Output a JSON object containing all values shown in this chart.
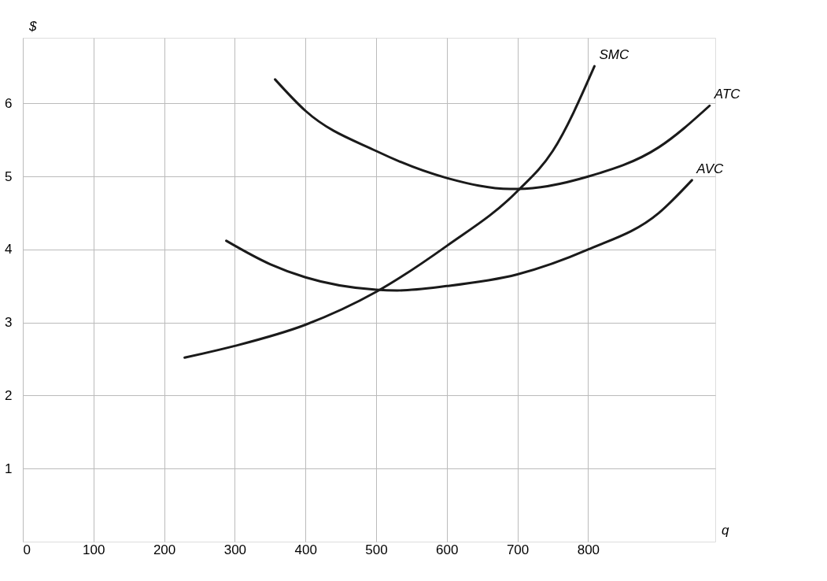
{
  "chart_data": {
    "type": "line",
    "xlabel": "q",
    "ylabel": "$",
    "xlim": [
      0,
      980
    ],
    "ylim": [
      0,
      6.9
    ],
    "xticks": [
      0,
      100,
      200,
      300,
      400,
      500,
      600,
      700,
      800
    ],
    "yticks": [
      1,
      2,
      3,
      4,
      5,
      6
    ],
    "grid": true,
    "marker": "none",
    "line_style": "solid",
    "series": [
      {
        "name": "SMC",
        "color": "#1a1a1a",
        "x": [
          229,
          300,
          400,
          500,
          600,
          700,
          750,
          809
        ],
        "values": [
          2.52,
          2.68,
          2.97,
          3.42,
          4.05,
          4.8,
          5.35,
          6.51
        ]
      },
      {
        "name": "ATC",
        "color": "#1a1a1a",
        "x": [
          357,
          400,
          500,
          600,
          690,
          700,
          800,
          900,
          972
        ],
        "values": [
          6.33,
          5.9,
          5.35,
          4.98,
          4.83,
          4.83,
          5.0,
          5.4,
          5.97
        ]
      },
      {
        "name": "AVC",
        "color": "#1a1a1a",
        "x": [
          288,
          350,
          400,
          500,
          530,
          600,
          700,
          800,
          900,
          947
        ],
        "values": [
          4.12,
          3.8,
          3.62,
          3.45,
          3.44,
          3.5,
          3.66,
          4.0,
          4.5,
          4.95
        ]
      }
    ]
  }
}
